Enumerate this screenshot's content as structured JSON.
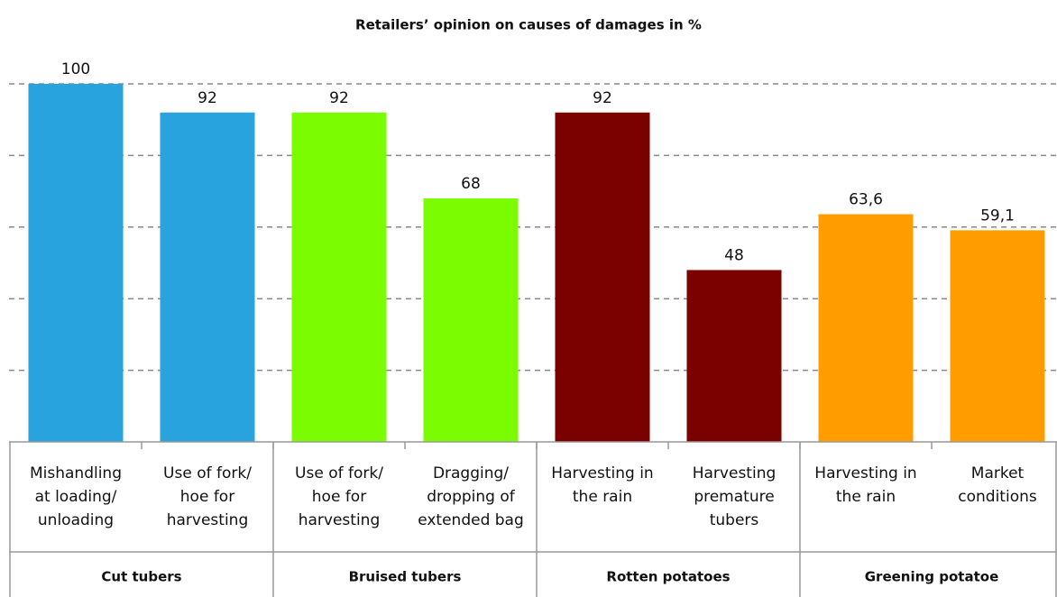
{
  "chart_data": {
    "type": "bar",
    "title": "Retailers’ opinion on causes of damages in %",
    "categories": [
      [
        "Mishandling",
        "at loading/",
        "unloading"
      ],
      [
        "Use of fork/",
        "hoe for",
        "harvesting"
      ],
      [
        "Use of fork/",
        "hoe for",
        "harvesting"
      ],
      [
        "Dragging/",
        "dropping of",
        "extended bag"
      ],
      [
        "Harvesting in",
        "the rain"
      ],
      [
        "Harvesting",
        "premature",
        "tubers"
      ],
      [
        "Harvesting in",
        "the rain"
      ],
      [
        "Market",
        "conditions"
      ]
    ],
    "groups": [
      "Cut tubers",
      "Bruised tubers",
      "Rotten potatoes",
      "Greening potatoe"
    ],
    "values": [
      100,
      92,
      92,
      68,
      92,
      48,
      63.6,
      59.1
    ],
    "value_labels": [
      "100",
      "92",
      "92",
      "68",
      "92",
      "48",
      "63,6",
      "59,1"
    ],
    "colors": [
      "#29a3dd",
      "#29a3dd",
      "#7cfc00",
      "#7cfc00",
      "#7b0000",
      "#7b0000",
      "#ff9c00",
      "#ff9c00"
    ],
    "ylim": [
      0,
      100
    ],
    "yticks": [
      0,
      20,
      40,
      60,
      80,
      100
    ],
    "grid": true
  }
}
